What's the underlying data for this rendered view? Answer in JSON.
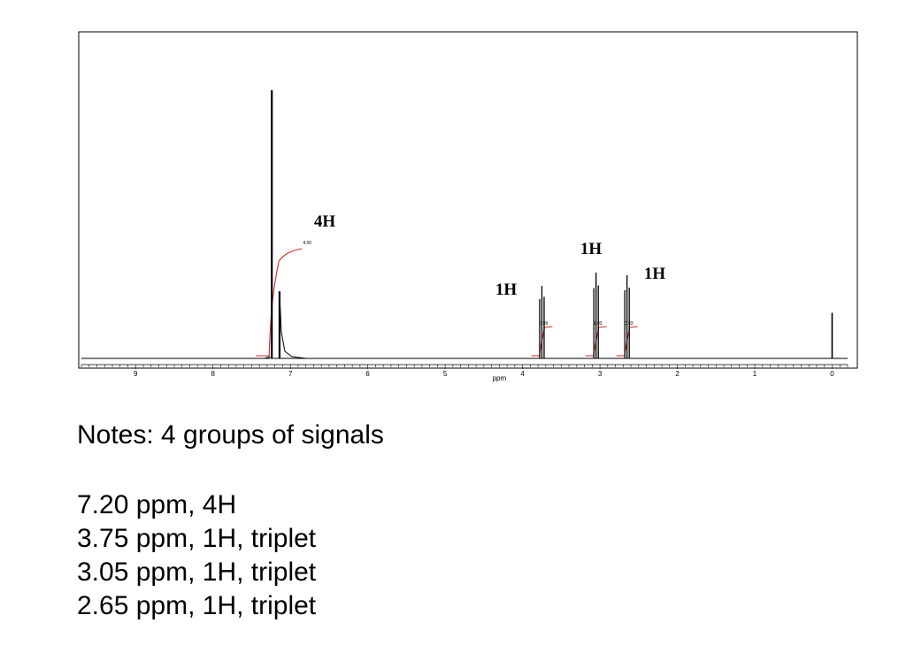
{
  "chart_data": {
    "type": "line",
    "xlabel": "ppm",
    "ylabel": "",
    "xlim": [
      9.7,
      -0.2
    ],
    "x_reversed": true,
    "ylim": [
      0,
      1.0
    ],
    "grid": false,
    "x_ticks": [
      "9",
      "8",
      "7",
      "6",
      "5",
      "4",
      "3",
      "2",
      "1",
      "0"
    ],
    "peaks": [
      {
        "ppm": 7.24,
        "height": 1.0,
        "label": "4H",
        "integral": "4.00"
      },
      {
        "ppm": 7.14,
        "height": 0.25,
        "label": "",
        "integral": ""
      },
      {
        "ppm": 3.75,
        "height": 0.27,
        "label": "1H",
        "integral": "0.99"
      },
      {
        "ppm": 3.05,
        "height": 0.32,
        "label": "1H",
        "integral": "1.03"
      },
      {
        "ppm": 2.65,
        "height": 0.31,
        "label": "1H",
        "integral": "0.93"
      },
      {
        "ppm": 0.0,
        "height": 0.17,
        "label": "",
        "integral": ""
      }
    ]
  },
  "notes": {
    "title": "Notes: 4 groups of signals",
    "lines": [
      "7.20 ppm, 4H",
      "3.75 ppm, 1H, triplet",
      "3.05 ppm, 1H, triplet",
      "2.65 ppm, 1H, triplet"
    ]
  },
  "colors": {
    "spectrum": "#000000",
    "integral": "#d62728",
    "frame": "#000000"
  }
}
